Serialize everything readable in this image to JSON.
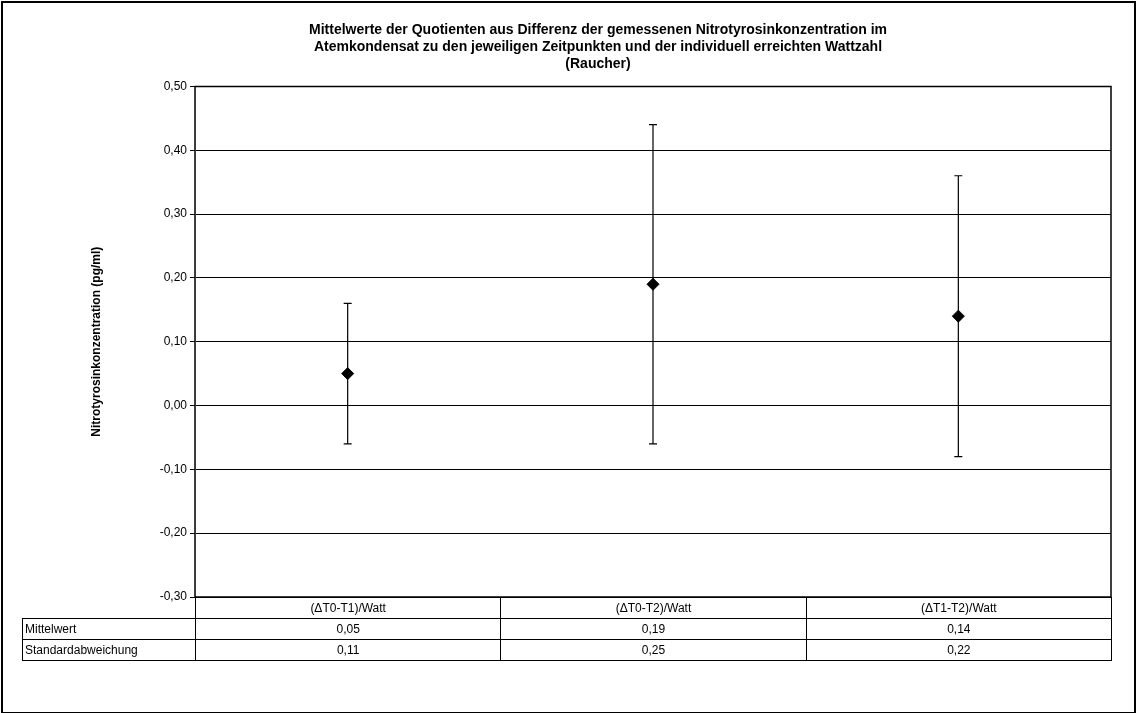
{
  "chart_data": {
    "type": "scatter",
    "title": "Mittelwerte der Quotienten aus Differenz der gemessenen Nitrotyrosinkonzentration im\nAtemkondensat zu den jeweiligen Zeitpunkten und der individuell erreichten Wattzahl\n(Raucher)",
    "ylabel": "Nitrotyrosinkonzentration (pg/ml)",
    "categories": [
      "(ΔT0-T1)/Watt",
      "(ΔT0-T2)/Watt",
      "(ΔT1-T2)/Watt"
    ],
    "series": [
      {
        "name": "Mittelwert",
        "color": "#000000",
        "values": [
          0.05,
          0.19,
          0.14
        ],
        "errors": [
          0.11,
          0.25,
          0.22
        ],
        "value_labels": [
          "0,05",
          "0,19",
          "0,14"
        ]
      }
    ],
    "annotations": [
      "Standardabweichung",
      "0,11",
      "0,25",
      "0,22"
    ],
    "ylim": [
      -0.3,
      0.5
    ],
    "yticks": [
      {
        "value": -0.3,
        "label": "-0,30"
      },
      {
        "value": -0.2,
        "label": "-0,20"
      },
      {
        "value": -0.1,
        "label": "-0,10"
      },
      {
        "value": 0,
        "label": "0,00"
      },
      {
        "value": 0.1,
        "label": "0,10"
      },
      {
        "value": 0.2,
        "label": "0,20"
      },
      {
        "value": 0.3,
        "label": "0,30"
      },
      {
        "value": 0.4,
        "label": "0,40"
      },
      {
        "value": 0.5,
        "label": "0,50"
      }
    ],
    "grid": "y",
    "legend": false,
    "marker": "diamond"
  }
}
